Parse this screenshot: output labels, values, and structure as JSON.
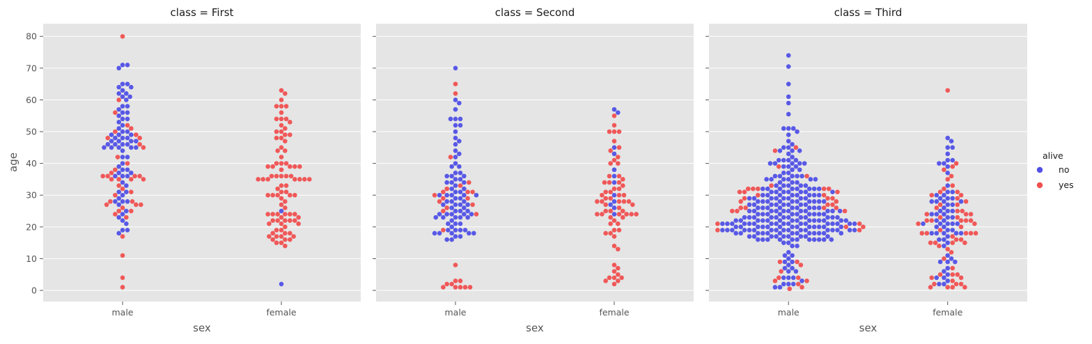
{
  "chart_data": {
    "type": "scatter",
    "subtype": "swarm",
    "x_label": "sex",
    "y_label": "age",
    "y_ticks": [
      0,
      10,
      20,
      30,
      40,
      50,
      60,
      70,
      80
    ],
    "ylim": [
      -3.5,
      84
    ],
    "categories": [
      "male",
      "female"
    ],
    "grid": true,
    "legend": {
      "title": "alive",
      "placement": "right",
      "entries": [
        {
          "label": "no",
          "color": "#5050e6"
        },
        {
          "label": "yes",
          "color": "#f05050"
        }
      ]
    },
    "panels": [
      {
        "title": "class = First",
        "groups": [
          {
            "category": "male",
            "no": [
              71,
              71,
              70,
              65,
              65,
              64,
              64,
              63,
              62,
              62,
              61,
              61,
              60,
              58,
              58,
              57,
              56,
              56,
              55,
              54,
              54,
              53,
              52,
              51,
              50,
              50,
              49,
              49,
              49,
              48,
              48,
              48,
              47,
              47,
              47,
              47,
              46,
              46,
              46,
              46,
              45,
              45,
              45,
              45,
              45,
              44,
              42,
              42,
              40,
              39,
              38,
              38,
              37,
              37,
              36,
              36,
              36,
              34,
              33,
              31,
              31,
              30,
              29,
              28,
              28,
              28,
              27,
              25,
              24,
              23,
              22,
              21,
              19,
              19,
              18
            ],
            "yes": [
              80,
              60,
              56,
              52,
              51,
              50,
              49,
              48,
              48,
              46,
              45,
              42,
              40,
              38,
              37,
              36,
              36,
              36,
              36,
              35,
              35,
              35,
              35,
              33,
              32,
              31,
              30,
              28,
              28,
              27,
              27,
              27,
              26,
              25,
              25,
              24,
              23,
              17,
              11,
              4,
              1
            ]
          },
          {
            "category": "female",
            "no": [
              25,
              2
            ],
            "yes": [
              63,
              62,
              60,
              58,
              58,
              58,
              56,
              54,
              54,
              54,
              53,
              52,
              51,
              50,
              50,
              49,
              49,
              48,
              48,
              47,
              45,
              44,
              44,
              42,
              40,
              40,
              40,
              39,
              39,
              39,
              39,
              39,
              38,
              36,
              36,
              36,
              36,
              36,
              35,
              35,
              35,
              35,
              35,
              35,
              35,
              33,
              33,
              32,
              31,
              31,
              30,
              30,
              30,
              30,
              30,
              29,
              28,
              27,
              26,
              24,
              24,
              24,
              24,
              24,
              24,
              23,
              23,
              22,
              22,
              22,
              22,
              22,
              21,
              21,
              21,
              20,
              19,
              19,
              18,
              18,
              18,
              17,
              17,
              17,
              17,
              16,
              16,
              16,
              15,
              15,
              14
            ]
          }
        ]
      },
      {
        "title": "class = Second",
        "groups": [
          {
            "category": "male",
            "no": [
              70,
              60,
              59,
              57,
              54,
              54,
              54,
              52,
              52,
              50,
              48,
              47,
              46,
              44,
              43,
              42,
              40,
              39,
              39,
              37,
              37,
              36,
              36,
              36,
              35,
              35,
              34,
              34,
              34,
              33,
              32,
              32,
              31,
              31,
              30,
              30,
              30,
              30,
              30,
              29,
              29,
              28,
              28,
              28,
              27,
              27,
              27,
              27,
              26,
              26,
              25,
              25,
              25,
              24,
              24,
              24,
              24,
              24,
              23,
              23,
              23,
              23,
              23,
              22,
              21,
              21,
              21,
              20,
              19,
              19,
              19,
              19,
              18,
              18,
              18,
              18,
              18,
              17,
              17,
              16,
              16
            ],
            "yes": [
              65,
              62,
              42,
              34,
              33,
              32,
              31,
              31,
              31,
              30,
              29,
              29,
              28,
              27,
              26,
              25,
              24,
              19,
              8,
              3,
              3,
              2,
              2,
              1,
              1,
              1,
              1,
              1
            ]
          },
          {
            "category": "female",
            "no": [
              57,
              56,
              45,
              43,
              38,
              36,
              34,
              30,
              28,
              27,
              26,
              24
            ],
            "yes": [
              55,
              52,
              50,
              50,
              50,
              47,
              45,
              44,
              42,
              41,
              40,
              40,
              36,
              36,
              35,
              34,
              34,
              34,
              33,
              32,
              32,
              31,
              31,
              30,
              30,
              30,
              29,
              29,
              28,
              28,
              28,
              28,
              28,
              27,
              27,
              26,
              25,
              25,
              25,
              24,
              24,
              24,
              24,
              24,
              24,
              23,
              23,
              22,
              21,
              21,
              19,
              19,
              18,
              18,
              17,
              14,
              13,
              8,
              7,
              6,
              5,
              4,
              4,
              4,
              3,
              3,
              2
            ]
          }
        ]
      },
      {
        "title": "class = Third",
        "groups": [
          {
            "category": "male",
            "no": [
              74,
              70.5,
              65,
              61,
              59,
              55.5,
              51,
              51,
              51,
              50,
              49,
              47,
              46,
              45,
              45,
              44,
              44,
              44,
              43,
              42,
              41,
              41,
              41,
              41,
              40,
              40,
              40,
              40,
              40,
              39,
              39,
              39,
              38,
              38,
              37,
              37,
              36,
              36,
              36,
              36,
              36,
              35,
              35,
              35,
              35,
              35,
              35,
              34,
              34,
              34,
              33,
              33,
              33,
              33,
              33,
              32,
              32,
              32,
              32,
              32,
              32,
              32,
              32,
              31,
              31,
              31,
              31,
              31,
              31,
              31,
              30,
              30,
              30,
              30,
              30,
              30,
              30,
              30,
              29,
              29,
              29,
              29,
              29,
              29,
              29,
              29,
              28,
              28,
              28,
              28,
              28,
              28,
              28,
              28,
              28,
              28,
              27,
              27,
              27,
              27,
              27,
              27,
              27,
              27,
              26,
              26,
              26,
              26,
              26,
              26,
              26,
              26,
              26,
              25,
              25,
              25,
              25,
              25,
              25,
              25,
              25,
              25,
              25,
              25,
              24,
              24,
              24,
              24,
              24,
              24,
              24,
              24,
              24,
              24,
              23,
              23,
              23,
              23,
              23,
              23,
              23,
              23,
              23,
              23,
              23,
              23,
              22,
              22,
              22,
              22,
              22,
              22,
              22,
              22,
              22,
              22,
              22,
              22,
              22,
              22,
              21,
              21,
              21,
              21,
              21,
              21,
              21,
              21,
              21,
              21,
              21,
              21,
              21,
              21,
              21,
              21,
              21,
              20,
              20,
              20,
              20,
              20,
              20,
              20,
              20,
              20,
              20,
              20,
              20,
              20,
              19,
              19,
              19,
              19,
              19,
              19,
              19,
              19,
              19,
              19,
              19,
              19,
              19,
              19,
              19,
              19,
              19,
              18,
              18,
              18,
              18,
              18,
              18,
              18,
              18,
              18,
              18,
              18,
              18,
              18,
              17,
              17,
              17,
              17,
              17,
              17,
              17,
              17,
              17,
              16,
              16,
              16,
              16,
              16,
              16,
              16,
              16,
              16,
              16,
              16,
              15,
              15,
              14,
              14,
              12,
              11,
              11,
              10,
              9,
              9,
              8,
              7,
              7,
              6,
              6,
              4,
              4,
              4,
              3,
              2,
              2,
              2,
              1,
              1
            ],
            "yes": [
              45,
              44,
              39,
              36,
              33,
              32,
              32,
              32,
              32,
              32,
              31,
              31,
              31,
              30,
              30,
              29,
              29,
              29,
              28,
              28,
              27,
              27,
              26,
              26,
              26,
              26,
              25,
              25,
              25,
              21,
              21,
              20,
              20,
              19,
              19,
              9,
              9,
              8,
              6,
              4,
              4,
              3,
              3,
              2,
              1,
              0.5
            ]
          },
          {
            "category": "female",
            "no": [
              48,
              47,
              45,
              45,
              43,
              41,
              41,
              40,
              40,
              39,
              37,
              33,
              31,
              31,
              30,
              30,
              29,
              29,
              29,
              28,
              28,
              28,
              28,
              27,
              27,
              26,
              25,
              25,
              25,
              24,
              24,
              24,
              23,
              23,
              22,
              22,
              21,
              21,
              21,
              21,
              21,
              20,
              20,
              19,
              19,
              18,
              18,
              18,
              18,
              18,
              17,
              16,
              16,
              15,
              14,
              11,
              10,
              9,
              9,
              9,
              7,
              6,
              5,
              4,
              4,
              3,
              2,
              2
            ],
            "yes": [
              63,
              40,
              39,
              38,
              36,
              35,
              33,
              32,
              31,
              31,
              30,
              30,
              29,
              28,
              27,
              27,
              26,
              25,
              25,
              24,
              24,
              24,
              23,
              23,
              22,
              22,
              22,
              22,
              22,
              21,
              21,
              20,
              19,
              18,
              18,
              18,
              18,
              18,
              17,
              16,
              16,
              15,
              15,
              15,
              15,
              14,
              13,
              12,
              10,
              7,
              5,
              5,
              5,
              4,
              4,
              3,
              2,
              2,
              2,
              1,
              1,
              1,
              1
            ]
          }
        ]
      }
    ]
  }
}
